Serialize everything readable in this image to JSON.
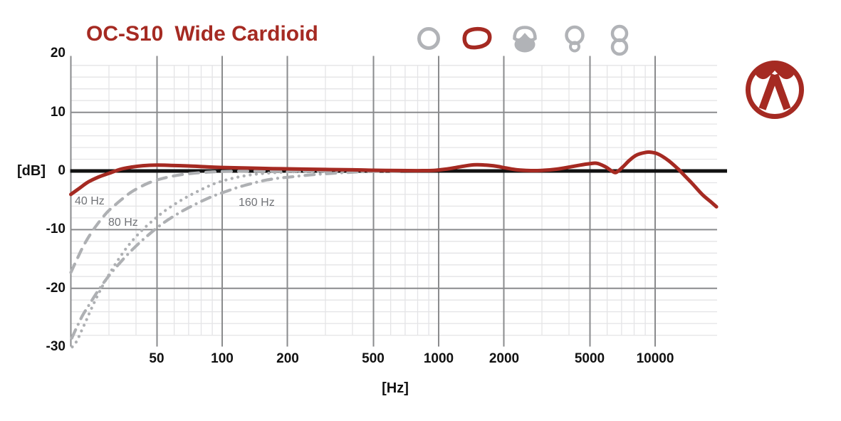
{
  "header": {
    "title_model": "OC-S10",
    "title_pattern": "Wide Cardioid"
  },
  "pattern_icons": {
    "items": [
      {
        "name": "omnidirectional",
        "selected": false
      },
      {
        "name": "wide-cardioid",
        "selected": true
      },
      {
        "name": "cardioid",
        "selected": false
      },
      {
        "name": "hypercardioid",
        "selected": false
      },
      {
        "name": "figure-8",
        "selected": false
      }
    ]
  },
  "logo": {
    "name": "austrian-audio-logo"
  },
  "colors": {
    "accent_red": "#a52a22",
    "icon_gray": "#b1b3b7",
    "curve_gray": "#aeb0b3",
    "grid_major": "#8a8b8d",
    "grid_minor": "#e4e4e6",
    "zero_line": "#111111",
    "label_gray": "#717377"
  },
  "chart_data": {
    "type": "line",
    "x_scale": "log",
    "xlabel": "[Hz]",
    "ylabel": "[dB]",
    "xlim": [
      20,
      20000
    ],
    "ylim": [
      -30,
      20
    ],
    "x_ticks": [
      50,
      100,
      200,
      500,
      1000,
      2000,
      5000,
      10000
    ],
    "y_ticks": [
      20,
      10,
      0,
      -10,
      -20,
      -30
    ],
    "x_minor_ticks": [
      30,
      40,
      60,
      70,
      80,
      90,
      300,
      400,
      600,
      700,
      800,
      900,
      3000,
      4000,
      6000,
      7000,
      8000,
      9000
    ],
    "y_minor_step": 2,
    "grid": true,
    "legend_position": "none",
    "series": [
      {
        "name": "frequency-response",
        "label": "",
        "style": "solid",
        "color": "red",
        "points": [
          [
            20,
            -4.0
          ],
          [
            22,
            -2.9
          ],
          [
            24,
            -1.9
          ],
          [
            27,
            -1.0
          ],
          [
            30,
            -0.4
          ],
          [
            34,
            0.3
          ],
          [
            38,
            0.65
          ],
          [
            43,
            0.9
          ],
          [
            50,
            1.0
          ],
          [
            58,
            0.95
          ],
          [
            70,
            0.85
          ],
          [
            85,
            0.7
          ],
          [
            100,
            0.6
          ],
          [
            130,
            0.5
          ],
          [
            170,
            0.4
          ],
          [
            220,
            0.33
          ],
          [
            300,
            0.25
          ],
          [
            400,
            0.2
          ],
          [
            500,
            0.12
          ],
          [
            650,
            0.07
          ],
          [
            800,
            0.05
          ],
          [
            950,
            0.1
          ],
          [
            1100,
            0.35
          ],
          [
            1250,
            0.7
          ],
          [
            1450,
            1.05
          ],
          [
            1650,
            1.0
          ],
          [
            1850,
            0.8
          ],
          [
            2050,
            0.5
          ],
          [
            2300,
            0.2
          ],
          [
            2600,
            0.07
          ],
          [
            3000,
            0.1
          ],
          [
            3500,
            0.3
          ],
          [
            4000,
            0.65
          ],
          [
            4500,
            1.0
          ],
          [
            5000,
            1.25
          ],
          [
            5400,
            1.3
          ],
          [
            5900,
            0.7
          ],
          [
            6300,
            0.0
          ],
          [
            6600,
            -0.25
          ],
          [
            7100,
            0.7
          ],
          [
            7600,
            1.8
          ],
          [
            8200,
            2.7
          ],
          [
            9000,
            3.15
          ],
          [
            9500,
            3.2
          ],
          [
            10300,
            2.9
          ],
          [
            11500,
            1.8
          ],
          [
            12800,
            0.3
          ],
          [
            13600,
            -0.7
          ],
          [
            14800,
            -2.1
          ],
          [
            16500,
            -4.0
          ],
          [
            18000,
            -5.2
          ],
          [
            19200,
            -6.1
          ]
        ]
      },
      {
        "name": "low-cut-filter-40hz",
        "label": "40 Hz",
        "style": "dashed",
        "color": "gray",
        "points": [
          [
            20,
            -17.3
          ],
          [
            21.5,
            -14.8
          ],
          [
            23,
            -12.6
          ],
          [
            25,
            -10.4
          ],
          [
            27,
            -8.7
          ],
          [
            29.5,
            -7.0
          ],
          [
            32,
            -5.8
          ],
          [
            35,
            -4.6
          ],
          [
            38,
            -3.6
          ],
          [
            42,
            -2.7
          ],
          [
            46,
            -2.0
          ],
          [
            51,
            -1.45
          ],
          [
            57,
            -1.0
          ],
          [
            64,
            -0.65
          ],
          [
            72,
            -0.42
          ],
          [
            82,
            -0.25
          ],
          [
            95,
            -0.12
          ],
          [
            115,
            -0.05
          ],
          [
            150,
            -0.02
          ],
          [
            220,
            0
          ],
          [
            320,
            0
          ]
        ]
      },
      {
        "name": "low-cut-filter-80hz",
        "label": "80 Hz",
        "style": "dotted",
        "color": "gray",
        "points": [
          [
            20.3,
            -30
          ],
          [
            21.3,
            -29.0
          ],
          [
            22.3,
            -27.4
          ],
          [
            23.6,
            -25.4
          ],
          [
            25,
            -23.3
          ],
          [
            26.6,
            -21.2
          ],
          [
            28.4,
            -19.2
          ],
          [
            30.5,
            -17.2
          ],
          [
            33,
            -15.2
          ],
          [
            36,
            -13.2
          ],
          [
            39.5,
            -11.4
          ],
          [
            43.5,
            -9.8
          ],
          [
            48,
            -8.4
          ],
          [
            53,
            -7.1
          ],
          [
            59,
            -5.9
          ],
          [
            66,
            -4.8
          ],
          [
            74,
            -3.8
          ],
          [
            83,
            -2.9
          ],
          [
            93,
            -2.1
          ],
          [
            105,
            -1.5
          ],
          [
            120,
            -1.0
          ],
          [
            140,
            -0.6
          ],
          [
            165,
            -0.35
          ],
          [
            200,
            -0.18
          ],
          [
            260,
            -0.07
          ],
          [
            350,
            -0.02
          ],
          [
            480,
            0
          ]
        ]
      },
      {
        "name": "low-cut-filter-160hz",
        "label": "160 Hz",
        "style": "dashdot",
        "color": "gray",
        "points": [
          [
            20.2,
            -28.5
          ],
          [
            21.2,
            -26.8
          ],
          [
            22.6,
            -24.7
          ],
          [
            24.4,
            -22.7
          ],
          [
            26.4,
            -20.7
          ],
          [
            28.8,
            -18.7
          ],
          [
            31.5,
            -16.9
          ],
          [
            34.8,
            -15.1
          ],
          [
            38.5,
            -13.4
          ],
          [
            42.5,
            -11.9
          ],
          [
            47,
            -10.5
          ],
          [
            52,
            -9.2
          ],
          [
            58,
            -8.0
          ],
          [
            65,
            -6.9
          ],
          [
            73,
            -5.9
          ],
          [
            82,
            -5.0
          ],
          [
            92,
            -4.2
          ],
          [
            104,
            -3.5
          ],
          [
            118,
            -2.8
          ],
          [
            135,
            -2.2
          ],
          [
            155,
            -1.65
          ],
          [
            180,
            -1.25
          ],
          [
            210,
            -1.0
          ],
          [
            250,
            -0.7
          ],
          [
            300,
            -0.48
          ],
          [
            370,
            -0.28
          ],
          [
            460,
            -0.12
          ],
          [
            580,
            -0.04
          ],
          [
            700,
            0
          ]
        ]
      }
    ]
  }
}
